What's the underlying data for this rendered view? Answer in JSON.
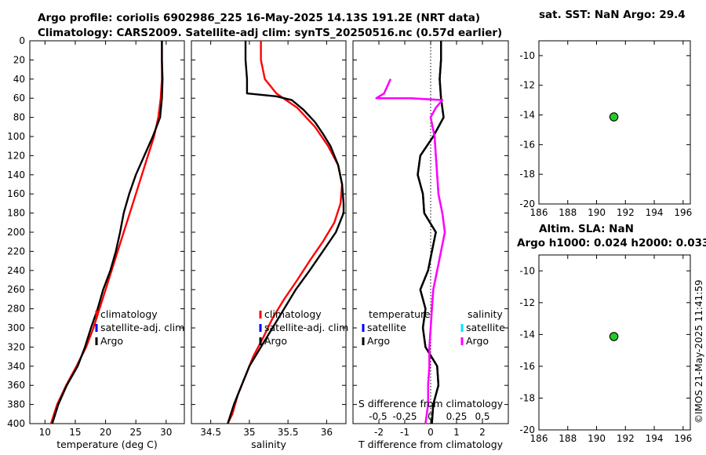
{
  "header": {
    "title_line1": "Argo profile: coriolis 6902986_225 16-May-2025 14.13S 191.2E (NRT data)",
    "title_line2": "Climatology: CARS2009. Satellite-adj clim: synTS_20250516.nc (0.57d earlier)"
  },
  "timestamp": "©IMOS 21-May-2025 11:41:59",
  "colors": {
    "climatology": "#ff0000",
    "satellite": "#0000ff",
    "argo": "#000000",
    "satellite_s": "#00e5ff",
    "argo_s": "#ff00ff",
    "marker": "#22cc22"
  },
  "chart_data": [
    {
      "id": "temperature",
      "type": "line",
      "xlabel": "temperature (deg C)",
      "ylabel": "",
      "xlim": [
        7.5,
        33
      ],
      "ylim": [
        400,
        0
      ],
      "x_ticks": [
        10,
        15,
        20,
        25,
        30
      ],
      "y_ticks": [
        0,
        20,
        40,
        60,
        80,
        100,
        120,
        140,
        160,
        180,
        200,
        220,
        240,
        260,
        280,
        300,
        320,
        340,
        360,
        380,
        400
      ],
      "legend": [
        "climatology",
        "satellite-adj. clim",
        "Argo"
      ],
      "series": [
        {
          "name": "climatology",
          "color": "#ff0000",
          "points": [
            [
              29.3,
              0
            ],
            [
              29.3,
              20
            ],
            [
              29.3,
              40
            ],
            [
              29.1,
              60
            ],
            [
              28.7,
              80
            ],
            [
              28.0,
              100
            ],
            [
              27.0,
              120
            ],
            [
              26.0,
              140
            ],
            [
              25.0,
              160
            ],
            [
              24.0,
              180
            ],
            [
              23.0,
              200
            ],
            [
              22.0,
              220
            ],
            [
              21.0,
              240
            ],
            [
              20.0,
              260
            ],
            [
              19.0,
              280
            ],
            [
              18.0,
              300
            ],
            [
              16.8,
              320
            ],
            [
              15.2,
              340
            ],
            [
              13.5,
              360
            ],
            [
              12.0,
              380
            ],
            [
              11.0,
              400
            ]
          ]
        },
        {
          "name": "Argo",
          "color": "#000000",
          "points": [
            [
              29.3,
              0
            ],
            [
              29.3,
              20
            ],
            [
              29.4,
              40
            ],
            [
              29.3,
              60
            ],
            [
              29.0,
              80
            ],
            [
              27.8,
              100
            ],
            [
              26.4,
              120
            ],
            [
              25.0,
              140
            ],
            [
              23.9,
              160
            ],
            [
              23.0,
              180
            ],
            [
              22.4,
              200
            ],
            [
              21.7,
              220
            ],
            [
              20.8,
              240
            ],
            [
              19.6,
              260
            ],
            [
              18.7,
              280
            ],
            [
              17.6,
              300
            ],
            [
              16.6,
              320
            ],
            [
              15.4,
              340
            ],
            [
              13.6,
              360
            ],
            [
              12.2,
              380
            ],
            [
              11.2,
              400
            ]
          ]
        }
      ]
    },
    {
      "id": "salinity",
      "type": "line",
      "xlabel": "salinity",
      "xlim": [
        34.25,
        36.25
      ],
      "ylim": [
        400,
        0
      ],
      "x_ticks": [
        34.5,
        35,
        35.5,
        36
      ],
      "legend": [
        "climatology",
        "satellite-adj. clim",
        "Argo"
      ],
      "series": [
        {
          "name": "climatology",
          "color": "#ff0000",
          "points": [
            [
              35.15,
              0
            ],
            [
              35.15,
              20
            ],
            [
              35.2,
              40
            ],
            [
              35.35,
              55
            ],
            [
              35.62,
              70
            ],
            [
              35.85,
              90
            ],
            [
              36.02,
              110
            ],
            [
              36.15,
              130
            ],
            [
              36.2,
              150
            ],
            [
              36.18,
              170
            ],
            [
              36.1,
              190
            ],
            [
              35.95,
              210
            ],
            [
              35.78,
              230
            ],
            [
              35.62,
              250
            ],
            [
              35.45,
              270
            ],
            [
              35.3,
              290
            ],
            [
              35.18,
              310
            ],
            [
              35.05,
              330
            ],
            [
              34.95,
              350
            ],
            [
              34.85,
              370
            ],
            [
              34.78,
              390
            ],
            [
              34.72,
              400
            ]
          ]
        },
        {
          "name": "Argo",
          "color": "#000000",
          "points": [
            [
              34.95,
              0
            ],
            [
              34.95,
              20
            ],
            [
              34.97,
              40
            ],
            [
              34.97,
              55
            ],
            [
              35.35,
              58
            ],
            [
              35.55,
              62
            ],
            [
              35.7,
              72
            ],
            [
              35.85,
              85
            ],
            [
              35.95,
              97
            ],
            [
              36.05,
              110
            ],
            [
              36.15,
              130
            ],
            [
              36.2,
              150
            ],
            [
              36.22,
              170
            ],
            [
              36.22,
              180
            ],
            [
              36.12,
              200
            ],
            [
              35.95,
              220
            ],
            [
              35.78,
              240
            ],
            [
              35.6,
              260
            ],
            [
              35.45,
              280
            ],
            [
              35.3,
              300
            ],
            [
              35.15,
              320
            ],
            [
              35.0,
              340
            ],
            [
              34.9,
              360
            ],
            [
              34.8,
              380
            ],
            [
              34.72,
              400
            ]
          ]
        }
      ]
    },
    {
      "id": "differences",
      "type": "line",
      "xlabel": "T difference from climatology",
      "xlim": [
        -3,
        3
      ],
      "ylim": [
        400,
        0
      ],
      "x_ticks": [
        -2,
        -1,
        0,
        1,
        2
      ],
      "top_label": "S difference from climatology",
      "top_ticks": [
        "-0.5",
        "-0.25",
        "0",
        "0.25",
        "0.5"
      ],
      "legend_t_title": "temperature",
      "legend_s_title": "salinity",
      "legend_t": [
        "satellite",
        "Argo"
      ],
      "legend_s": [
        "satellite",
        "Argo"
      ],
      "series": [
        {
          "name": "T Argo",
          "color": "#000000",
          "points": [
            [
              0.4,
              0
            ],
            [
              0.4,
              20
            ],
            [
              0.35,
              40
            ],
            [
              0.4,
              60
            ],
            [
              0.5,
              80
            ],
            [
              0.1,
              100
            ],
            [
              -0.4,
              120
            ],
            [
              -0.5,
              140
            ],
            [
              -0.3,
              160
            ],
            [
              -0.25,
              180
            ],
            [
              0.2,
              200
            ],
            [
              0.05,
              220
            ],
            [
              -0.1,
              240
            ],
            [
              -0.4,
              260
            ],
            [
              -0.2,
              280
            ],
            [
              -0.3,
              300
            ],
            [
              -0.2,
              320
            ],
            [
              0.25,
              340
            ],
            [
              0.3,
              360
            ],
            [
              0.1,
              380
            ],
            [
              0.05,
              400
            ]
          ]
        },
        {
          "name": "S Argo",
          "color": "#ff00ff",
          "points": [
            [
              -1.55,
              40
            ],
            [
              -1.8,
              55
            ],
            [
              -2.1,
              60
            ],
            [
              -0.8,
              60
            ],
            [
              0.45,
              62
            ],
            [
              0.2,
              70
            ],
            [
              0.0,
              80
            ],
            [
              0.15,
              100
            ],
            [
              0.2,
              120
            ],
            [
              0.25,
              140
            ],
            [
              0.3,
              160
            ],
            [
              0.45,
              180
            ],
            [
              0.55,
              200
            ],
            [
              0.4,
              220
            ],
            [
              0.25,
              240
            ],
            [
              0.1,
              260
            ],
            [
              0.05,
              280
            ],
            [
              0.0,
              300
            ],
            [
              -0.05,
              320
            ],
            [
              -0.05,
              340
            ],
            [
              -0.1,
              360
            ],
            [
              -0.1,
              380
            ],
            [
              -0.2,
              400
            ]
          ]
        }
      ]
    },
    {
      "id": "sst_map",
      "type": "scatter",
      "title": "sat. SST: NaN Argo: 29.4",
      "xlim": [
        186,
        196.5
      ],
      "ylim": [
        -20,
        -9
      ],
      "x_ticks": [
        186,
        188,
        190,
        192,
        194,
        196
      ],
      "y_ticks": [
        -10,
        -12,
        -14,
        -16,
        -18,
        -20
      ],
      "points": [
        [
          191.2,
          -14.13
        ]
      ]
    },
    {
      "id": "sla_map",
      "type": "scatter",
      "title_line1": "Altim. SLA: NaN",
      "title_line2": "Argo h1000: 0.024 h2000: 0.033",
      "xlim": [
        186,
        196.5
      ],
      "ylim": [
        -20,
        -9
      ],
      "x_ticks": [
        186,
        188,
        190,
        192,
        194,
        196
      ],
      "y_ticks": [
        -10,
        -12,
        -14,
        -16,
        -18,
        -20
      ],
      "points": [
        [
          191.2,
          -14.13
        ]
      ]
    }
  ]
}
